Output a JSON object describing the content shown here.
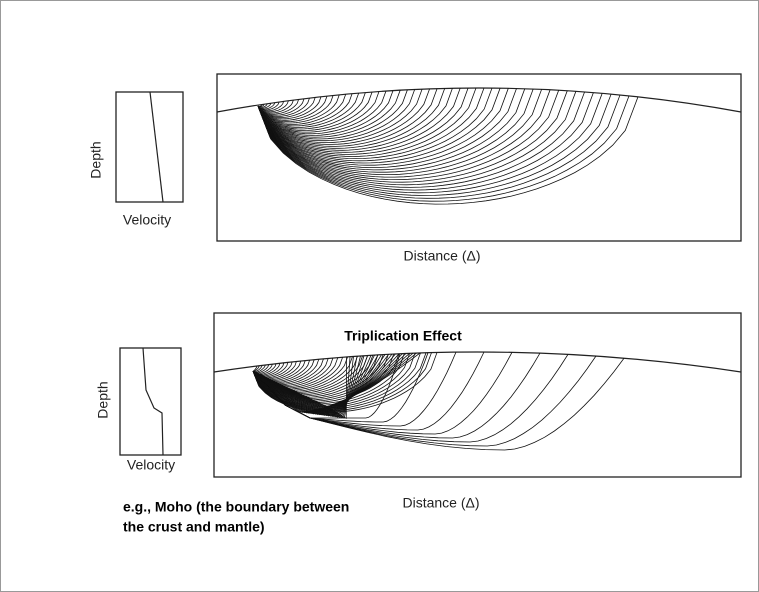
{
  "top_panel": {
    "y_label": "Depth",
    "x_label": "Velocity",
    "distance_label": "Distance (Δ)"
  },
  "bottom_panel": {
    "title": "Triplication Effect",
    "y_label": "Depth",
    "x_label": "Velocity",
    "distance_label": "Distance (Δ)"
  },
  "note": {
    "lines": [
      "e.g., Moho (the boundary between",
      "the crust and mantle)"
    ]
  }
}
